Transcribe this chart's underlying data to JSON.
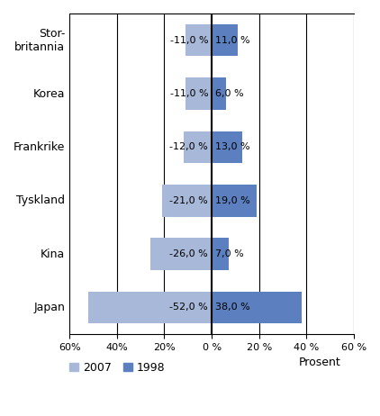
{
  "categories": [
    "Stor-\nbritannia",
    "Korea",
    "Frankrike",
    "Tyskland",
    "Kina",
    "Japan"
  ],
  "values_2007": [
    -11.0,
    -11.0,
    -12.0,
    -21.0,
    -26.0,
    -52.0
  ],
  "values_1998": [
    11.0,
    6.0,
    13.0,
    19.0,
    7.0,
    38.0
  ],
  "labels_2007": [
    "-11,0 %",
    "-11,0 %",
    "-12,0 %",
    "-21,0 %",
    "-26,0 %",
    "-52,0 %"
  ],
  "labels_1998": [
    "11,0 %",
    "6,0 %",
    "13,0 %",
    "19,0 %",
    "7,0 %",
    "38,0 %"
  ],
  "color_2007": "#a8b8d8",
  "color_1998": "#5b7fbf",
  "xlim": [
    -60,
    60
  ],
  "xticks": [
    -60,
    -40,
    -20,
    0,
    20,
    40,
    60
  ],
  "xtick_labels": [
    "60%",
    "40%",
    "20%",
    "0 %",
    "20 %",
    "40 %",
    "60 %"
  ],
  "xlabel": "Prosent",
  "legend_2007": "2007",
  "legend_1998": "1998",
  "background_color": "#ffffff",
  "grid_color": "#000000"
}
